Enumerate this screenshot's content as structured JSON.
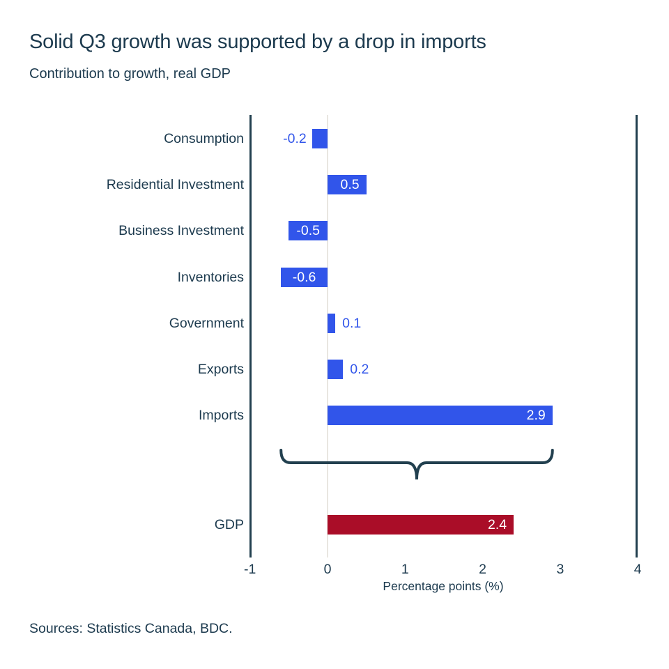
{
  "header": {
    "title": "Solid Q3 growth was supported by a drop in imports",
    "subtitle": "Contribution to growth, real GDP"
  },
  "chart_data": {
    "type": "bar",
    "orientation": "horizontal",
    "categories": [
      "Consumption",
      "Residential Investment",
      "Business Investment",
      "Inventories",
      "Government",
      "Exports",
      "Imports",
      "GDP"
    ],
    "values": [
      -0.2,
      0.5,
      -0.5,
      -0.6,
      0.1,
      0.2,
      2.9,
      2.4
    ],
    "value_labels": [
      "-0.2",
      "0.5",
      "-0.5",
      "-0.6",
      "0.1",
      "0.2",
      "2.9",
      "2.4"
    ],
    "xlabel": "Percentage points (%)",
    "x_ticks": [
      -1,
      0,
      1,
      2,
      3,
      4
    ],
    "x_tick_labels": [
      "-1",
      "0",
      "1",
      "2",
      "3",
      "4"
    ],
    "xlim": [
      -1,
      4
    ],
    "grid": "vertical rules at -1, 0 and 4 only",
    "legend": "none",
    "brace_span_values": [
      -0.6,
      2.9
    ],
    "colors": {
      "component_bar": "#3155ea",
      "gdp_bar": "#aa0d28",
      "outside_label": "#3155ea",
      "axis_rule": "#22404f",
      "zero_line": "#e9e6e1",
      "text": "#1c3a4e"
    }
  },
  "footer": {
    "sources": "Sources: Statistics Canada, BDC."
  }
}
